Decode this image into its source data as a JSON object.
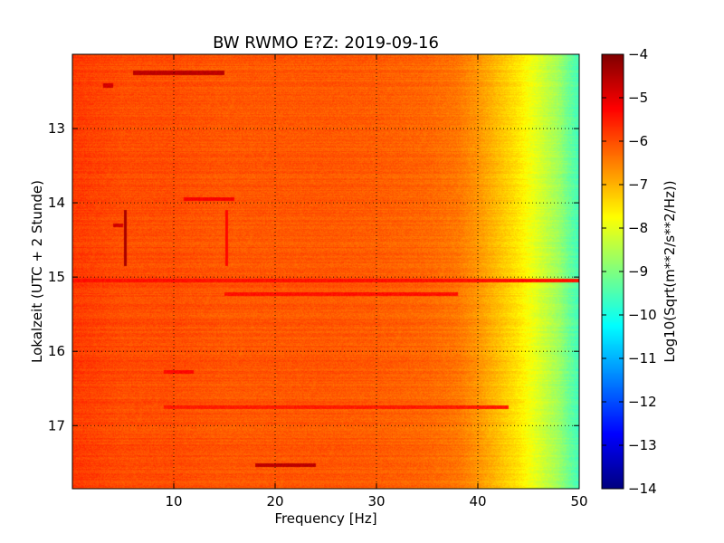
{
  "chart_data": {
    "type": "heatmap",
    "title": "BW RWMO E?Z: 2019-09-16",
    "xlabel": "Frequency [Hz]",
    "ylabel": "Lokalzeit (UTC + 2 Stunde)",
    "xlim": [
      0,
      50
    ],
    "ylim": [
      12,
      17.85
    ],
    "y_inverted": true,
    "x_ticks": [
      10,
      20,
      30,
      40,
      50
    ],
    "y_ticks": [
      13,
      14,
      15,
      16,
      17
    ],
    "grid": true,
    "colormap": "jet",
    "colorbar": {
      "label": "Log10(Sqrt(m**2/s**2/Hz))",
      "range": [
        -14,
        -4
      ],
      "ticks": [
        -4,
        -5,
        -6,
        -7,
        -8,
        -9,
        -10,
        -11,
        -12,
        -13,
        -14
      ]
    },
    "frequency_profile": {
      "frequency_hz": [
        0,
        5,
        10,
        15,
        20,
        25,
        30,
        35,
        38,
        40,
        42,
        44,
        46,
        48,
        49,
        50
      ],
      "value": [
        -5.8,
        -6.0,
        -6.0,
        -6.1,
        -6.1,
        -6.1,
        -6.15,
        -6.25,
        -6.4,
        -6.7,
        -7.1,
        -7.5,
        -8.1,
        -8.7,
        -9.2,
        -9.6
      ]
    },
    "features": [
      {
        "kind": "horizontal",
        "time": 12.25,
        "f_start": 6,
        "f_end": 15,
        "value": -4.6
      },
      {
        "kind": "horizontal",
        "time": 12.42,
        "f_start": 3,
        "f_end": 4,
        "value": -4.8
      },
      {
        "kind": "horizontal",
        "time": 13.95,
        "f_start": 11,
        "f_end": 16,
        "value": -5.2
      },
      {
        "kind": "horizontal",
        "time": 14.3,
        "f_start": 4,
        "f_end": 5,
        "value": -4.8
      },
      {
        "kind": "horizontal",
        "time": 15.05,
        "f_start": 0,
        "f_end": 50,
        "value": -5.4
      },
      {
        "kind": "horizontal",
        "time": 15.23,
        "f_start": 15,
        "f_end": 38,
        "value": -5.4
      },
      {
        "kind": "horizontal",
        "time": 16.28,
        "f_start": 9,
        "f_end": 12,
        "value": -5.3
      },
      {
        "kind": "horizontal",
        "time": 16.75,
        "f_start": 9,
        "f_end": 43,
        "value": -5.5
      },
      {
        "kind": "horizontal",
        "time": 17.53,
        "f_start": 18,
        "f_end": 24,
        "value": -4.6
      },
      {
        "kind": "vertical",
        "freq": 5.2,
        "t_start": 14.1,
        "t_end": 14.85,
        "value": -4.4
      },
      {
        "kind": "vertical",
        "freq": 15.2,
        "t_start": 14.1,
        "t_end": 14.85,
        "value": -5.3
      }
    ]
  }
}
